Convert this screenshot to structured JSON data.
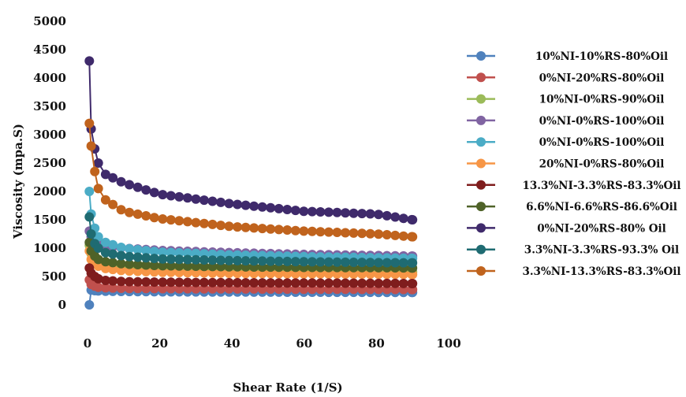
{
  "chart_data": {
    "type": "scatter",
    "xlabel": "Shear Rate (1/S)",
    "ylabel": "Viscosity (mpa.S)",
    "xlim": [
      0,
      100
    ],
    "ylim": [
      0,
      5000
    ],
    "xticks": [
      "0",
      "20",
      "40",
      "60",
      "80",
      "100"
    ],
    "yticks": [
      "0",
      "500",
      "1000",
      "1500",
      "2000",
      "2500",
      "3000",
      "3500",
      "4000",
      "4500",
      "5000"
    ],
    "grid": false,
    "legend_position": "right",
    "series": [
      {
        "name": "10%NI-10%RS-80%Oil",
        "color": "#4f81bd",
        "points": [
          [
            0.5,
            0
          ],
          [
            1,
            260
          ],
          [
            2,
            250
          ],
          [
            3,
            245
          ],
          [
            5,
            240
          ],
          [
            10,
            235
          ],
          [
            20,
            230
          ],
          [
            40,
            225
          ],
          [
            60,
            222
          ],
          [
            80,
            220
          ],
          [
            90,
            218
          ]
        ]
      },
      {
        "name": "0%NI-20%RS-80%Oil",
        "color": "#c0504d",
        "points": [
          [
            0.5,
            440
          ],
          [
            1,
            360
          ],
          [
            2,
            330
          ],
          [
            3,
            310
          ],
          [
            5,
            300
          ],
          [
            10,
            290
          ],
          [
            20,
            285
          ],
          [
            40,
            280
          ],
          [
            60,
            275
          ],
          [
            80,
            272
          ],
          [
            90,
            270
          ]
        ]
      },
      {
        "name": "10%NI-0%RS-90%Oil",
        "color": "#9bbb59",
        "points": [
          [
            0.5,
            1050
          ],
          [
            1,
            900
          ],
          [
            2,
            820
          ],
          [
            3,
            760
          ],
          [
            5,
            700
          ],
          [
            10,
            650
          ],
          [
            20,
            620
          ],
          [
            40,
            600
          ],
          [
            60,
            590
          ],
          [
            80,
            585
          ],
          [
            90,
            580
          ]
        ]
      },
      {
        "name": "0%NI-0%RS-100%Oil",
        "color": "#8064a2",
        "points": [
          [
            0.5,
            1300
          ],
          [
            1,
            1200
          ],
          [
            2,
            1120
          ],
          [
            3,
            1080
          ],
          [
            5,
            1040
          ],
          [
            10,
            1000
          ],
          [
            20,
            960
          ],
          [
            40,
            920
          ],
          [
            60,
            890
          ],
          [
            80,
            870
          ],
          [
            90,
            860
          ]
        ]
      },
      {
        "name": "0%NI-0%RS-100%Oil",
        "color": "#4bacc6",
        "points": [
          [
            0.5,
            2000
          ],
          [
            1,
            1600
          ],
          [
            2,
            1350
          ],
          [
            3,
            1200
          ],
          [
            5,
            1100
          ],
          [
            10,
            1000
          ],
          [
            20,
            930
          ],
          [
            40,
            880
          ],
          [
            60,
            850
          ],
          [
            80,
            830
          ],
          [
            90,
            820
          ]
        ]
      },
      {
        "name": "20%NI-0%RS-80%Oil",
        "color": "#f79646",
        "points": [
          [
            0.5,
            950
          ],
          [
            1,
            800
          ],
          [
            2,
            720
          ],
          [
            3,
            680
          ],
          [
            5,
            640
          ],
          [
            10,
            600
          ],
          [
            20,
            575
          ],
          [
            40,
            555
          ],
          [
            60,
            545
          ],
          [
            80,
            540
          ],
          [
            90,
            535
          ]
        ]
      },
      {
        "name": "13.3%NI-3.3%RS-83.3%Oil",
        "color": "#7f1d1d",
        "points": [
          [
            0.5,
            650
          ],
          [
            1,
            560
          ],
          [
            2,
            500
          ],
          [
            3,
            460
          ],
          [
            5,
            430
          ],
          [
            10,
            410
          ],
          [
            20,
            400
          ],
          [
            40,
            390
          ],
          [
            60,
            385
          ],
          [
            80,
            380
          ],
          [
            90,
            375
          ]
        ]
      },
      {
        "name": "6.6%NI-6.6%RS-86.6%Oil",
        "color": "#4f6228",
        "points": [
          [
            0.5,
            1100
          ],
          [
            1,
            950
          ],
          [
            2,
            860
          ],
          [
            3,
            800
          ],
          [
            5,
            760
          ],
          [
            10,
            720
          ],
          [
            20,
            690
          ],
          [
            40,
            670
          ],
          [
            60,
            660
          ],
          [
            80,
            655
          ],
          [
            90,
            650
          ]
        ]
      },
      {
        "name": "0%NI-20%RS-80% Oil",
        "color": "#3f2a6b",
        "points": [
          [
            0.5,
            4300
          ],
          [
            1,
            3100
          ],
          [
            2,
            2750
          ],
          [
            3,
            2500
          ],
          [
            5,
            2300
          ],
          [
            10,
            2150
          ],
          [
            20,
            1950
          ],
          [
            40,
            1780
          ],
          [
            60,
            1650
          ],
          [
            80,
            1600
          ],
          [
            90,
            1500
          ]
        ]
      },
      {
        "name": "3.3%NI-3.3%RS-93.3% Oil",
        "color": "#1f6b72",
        "points": [
          [
            0.5,
            1550
          ],
          [
            1,
            1250
          ],
          [
            2,
            1080
          ],
          [
            3,
            1000
          ],
          [
            5,
            920
          ],
          [
            10,
            860
          ],
          [
            20,
            810
          ],
          [
            40,
            780
          ],
          [
            60,
            760
          ],
          [
            80,
            745
          ],
          [
            90,
            740
          ]
        ]
      },
      {
        "name": "3.3%NI-13.3%RS-83.3%Oil",
        "color": "#c0631d",
        "points": [
          [
            0.5,
            3200
          ],
          [
            1,
            2800
          ],
          [
            2,
            2350
          ],
          [
            3,
            2050
          ],
          [
            5,
            1850
          ],
          [
            10,
            1650
          ],
          [
            20,
            1520
          ],
          [
            40,
            1380
          ],
          [
            60,
            1300
          ],
          [
            80,
            1250
          ],
          [
            90,
            1200
          ]
        ]
      }
    ]
  }
}
